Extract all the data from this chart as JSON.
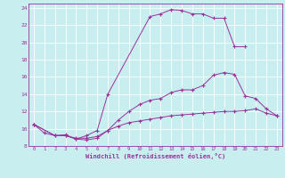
{
  "xlabel": "Windchill (Refroidissement éolien,°C)",
  "bg_color": "#c8eef0",
  "line_color": "#993399",
  "grid_color": "#ffffff",
  "xlim": [
    -0.5,
    23.5
  ],
  "ylim": [
    8,
    24.5
  ],
  "xticks": [
    0,
    1,
    2,
    3,
    4,
    5,
    6,
    7,
    8,
    9,
    10,
    11,
    12,
    13,
    14,
    15,
    16,
    17,
    18,
    19,
    20,
    21,
    22,
    23
  ],
  "yticks": [
    8,
    10,
    12,
    14,
    16,
    18,
    20,
    22,
    24
  ],
  "curve1_x": [
    0,
    1,
    2,
    3,
    4,
    5,
    6,
    7,
    11,
    12,
    13,
    14,
    15,
    16,
    17,
    18,
    19,
    20
  ],
  "curve1_y": [
    10.5,
    9.5,
    9.2,
    9.3,
    8.8,
    9.2,
    9.8,
    14.0,
    23.0,
    23.3,
    23.8,
    23.7,
    23.3,
    23.3,
    22.8,
    22.8,
    19.5,
    19.5
  ],
  "curve2_x": [
    0,
    2,
    3,
    4,
    5,
    6,
    7,
    8,
    9,
    10,
    11,
    12,
    13,
    14,
    15,
    16,
    17,
    18,
    19,
    20,
    21,
    22,
    23
  ],
  "curve2_y": [
    10.5,
    9.2,
    9.2,
    8.8,
    8.7,
    8.9,
    9.8,
    11.0,
    12.0,
    12.8,
    13.3,
    13.5,
    14.2,
    14.5,
    14.5,
    15.0,
    16.2,
    16.5,
    16.3,
    13.8,
    13.5,
    12.3,
    11.5
  ],
  "curve3_x": [
    0,
    2,
    3,
    4,
    5,
    6,
    7,
    8,
    9,
    10,
    11,
    12,
    13,
    14,
    15,
    16,
    17,
    18,
    19,
    20,
    21,
    22,
    23
  ],
  "curve3_y": [
    10.5,
    9.2,
    9.2,
    8.9,
    8.9,
    9.1,
    9.8,
    10.3,
    10.7,
    10.9,
    11.1,
    11.3,
    11.5,
    11.6,
    11.7,
    11.8,
    11.9,
    12.0,
    12.0,
    12.1,
    12.3,
    11.8,
    11.5
  ]
}
